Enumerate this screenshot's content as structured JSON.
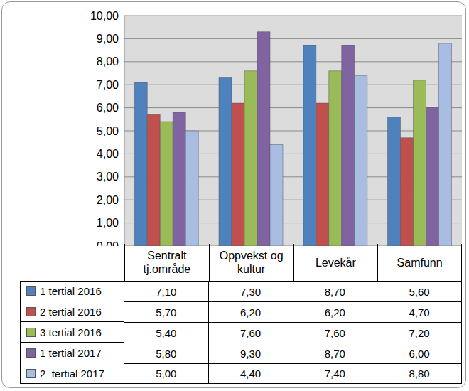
{
  "chart_data": {
    "type": "bar",
    "categories": [
      "Sentralt tj.område",
      "Oppvekst og kultur",
      "Levekår",
      "Samfunn"
    ],
    "series": [
      {
        "name": "1 tertial 2016",
        "color": "#4f81bd",
        "values": [
          7.1,
          7.3,
          8.7,
          5.6
        ],
        "value_labels": [
          "7,10",
          "7,30",
          "8,70",
          "5,60"
        ]
      },
      {
        "name": "2 tertial 2016",
        "color": "#c0504d",
        "values": [
          5.7,
          6.2,
          6.2,
          4.7
        ],
        "value_labels": [
          "5,70",
          "6,20",
          "6,20",
          "4,70"
        ]
      },
      {
        "name": "3 tertial 2016",
        "color": "#9bbb59",
        "values": [
          5.4,
          7.6,
          7.6,
          7.2
        ],
        "value_labels": [
          "5,40",
          "7,60",
          "7,60",
          "7,20"
        ]
      },
      {
        "name": "1 tertial 2017",
        "color": "#8064a2",
        "values": [
          5.8,
          9.3,
          8.7,
          6.0
        ],
        "value_labels": [
          "5,80",
          "9,30",
          "8,70",
          "6,00"
        ]
      },
      {
        "name": "2  tertial 2017",
        "color": "#a9bde3",
        "values": [
          5.0,
          4.4,
          7.4,
          8.8
        ],
        "value_labels": [
          "5,00",
          "4,40",
          "7,40",
          "8,80"
        ]
      }
    ],
    "ylim": [
      0,
      10
    ],
    "yticks": [
      {
        "value": 0,
        "label": "0,00"
      },
      {
        "value": 1,
        "label": "1,00"
      },
      {
        "value": 2,
        "label": "2,00"
      },
      {
        "value": 3,
        "label": "3,00"
      },
      {
        "value": 4,
        "label": "4,00"
      },
      {
        "value": 5,
        "label": "5,00"
      },
      {
        "value": 6,
        "label": "6,00"
      },
      {
        "value": 7,
        "label": "7,00"
      },
      {
        "value": 8,
        "label": "8,00"
      },
      {
        "value": 9,
        "label": "9,00"
      },
      {
        "value": 10,
        "label": "10,00"
      }
    ],
    "grid": true
  }
}
